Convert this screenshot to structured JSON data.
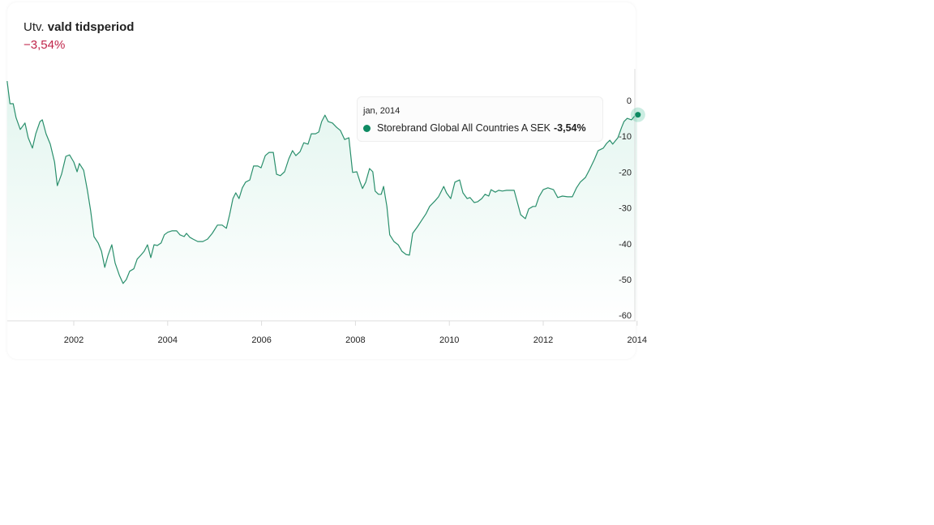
{
  "header": {
    "title_prefix": "Utv.",
    "title_bold": "vald tidsperiod",
    "change": "−3,54%",
    "change_color": "#c0254a"
  },
  "tooltip": {
    "date": "jan, 2014",
    "series": "Storebrand Global All Countries A SEK",
    "value": "-3,54%"
  },
  "colors": {
    "line": "#2a8f6c",
    "dot": "#0d8a62",
    "fill": "#2fb88a"
  },
  "chart_data": {
    "type": "area",
    "title": "Utv. vald tidsperiod",
    "xlabel": "",
    "ylabel": "",
    "xlim": [
      2000.58,
      2014.0
    ],
    "ylim": [
      -60,
      5
    ],
    "x_ticks": [
      2002,
      2004,
      2006,
      2008,
      2010,
      2012,
      2014
    ],
    "x_tick_labels": [
      "2002",
      "2004",
      "2006",
      "2008",
      "2010",
      "2012",
      "2014"
    ],
    "y_ticks": [
      0,
      -10,
      -20,
      -30,
      -40,
      -50,
      -60
    ],
    "y_tick_labels": [
      "0",
      "-10",
      "-20",
      "-30",
      "-40",
      "-50",
      "-60"
    ],
    "grid": false,
    "series": [
      {
        "name": "Storebrand Global All Countries A SEK",
        "points": [
          [
            2000.58,
            5.4
          ],
          [
            2000.64,
            -0.9
          ],
          [
            2000.71,
            -0.9
          ],
          [
            2000.77,
            -4.8
          ],
          [
            2000.86,
            -8.1
          ],
          [
            2000.96,
            -6.3
          ],
          [
            2001.03,
            -10.4
          ],
          [
            2001.12,
            -13.3
          ],
          [
            2001.19,
            -9.3
          ],
          [
            2001.28,
            -5.9
          ],
          [
            2001.33,
            -5.4
          ],
          [
            2001.41,
            -9.3
          ],
          [
            2001.5,
            -12.2
          ],
          [
            2001.59,
            -17.2
          ],
          [
            2001.65,
            -23.8
          ],
          [
            2001.74,
            -20.6
          ],
          [
            2001.83,
            -15.6
          ],
          [
            2001.91,
            -15.2
          ],
          [
            2002.0,
            -17.2
          ],
          [
            2002.07,
            -19.9
          ],
          [
            2002.12,
            -17.6
          ],
          [
            2002.21,
            -19.5
          ],
          [
            2002.29,
            -25.1
          ],
          [
            2002.36,
            -30.8
          ],
          [
            2002.43,
            -38.0
          ],
          [
            2002.52,
            -39.8
          ],
          [
            2002.59,
            -42.1
          ],
          [
            2002.66,
            -46.6
          ],
          [
            2002.73,
            -43.2
          ],
          [
            2002.81,
            -40.3
          ],
          [
            2002.88,
            -45.4
          ],
          [
            2002.97,
            -48.8
          ],
          [
            2003.05,
            -51.1
          ],
          [
            2003.12,
            -50.0
          ],
          [
            2003.19,
            -47.7
          ],
          [
            2003.28,
            -47.0
          ],
          [
            2003.35,
            -44.3
          ],
          [
            2003.43,
            -43.2
          ],
          [
            2003.5,
            -42.1
          ],
          [
            2003.57,
            -40.3
          ],
          [
            2003.64,
            -43.9
          ],
          [
            2003.71,
            -40.3
          ],
          [
            2003.78,
            -40.5
          ],
          [
            2003.86,
            -39.8
          ],
          [
            2003.93,
            -37.5
          ],
          [
            2004.0,
            -36.8
          ],
          [
            2004.09,
            -36.4
          ],
          [
            2004.19,
            -36.4
          ],
          [
            2004.26,
            -37.5
          ],
          [
            2004.35,
            -38.0
          ],
          [
            2004.4,
            -37.1
          ],
          [
            2004.47,
            -38.2
          ],
          [
            2004.54,
            -38.7
          ],
          [
            2004.64,
            -39.4
          ],
          [
            2004.75,
            -39.4
          ],
          [
            2004.85,
            -38.7
          ],
          [
            2004.95,
            -37.1
          ],
          [
            2005.06,
            -34.8
          ],
          [
            2005.16,
            -34.8
          ],
          [
            2005.25,
            -35.7
          ],
          [
            2005.32,
            -31.9
          ],
          [
            2005.39,
            -27.4
          ],
          [
            2005.45,
            -25.8
          ],
          [
            2005.52,
            -27.4
          ],
          [
            2005.59,
            -24.4
          ],
          [
            2005.66,
            -22.8
          ],
          [
            2005.75,
            -22.2
          ],
          [
            2005.83,
            -18.3
          ],
          [
            2005.92,
            -18.3
          ],
          [
            2005.99,
            -18.8
          ],
          [
            2006.08,
            -15.4
          ],
          [
            2006.16,
            -14.5
          ],
          [
            2006.25,
            -14.5
          ],
          [
            2006.32,
            -20.6
          ],
          [
            2006.4,
            -21.0
          ],
          [
            2006.49,
            -19.9
          ],
          [
            2006.58,
            -16.3
          ],
          [
            2006.66,
            -14.0
          ],
          [
            2006.73,
            -15.4
          ],
          [
            2006.82,
            -14.3
          ],
          [
            2006.9,
            -11.8
          ],
          [
            2006.99,
            -12.2
          ],
          [
            2007.06,
            -9.3
          ],
          [
            2007.15,
            -9.3
          ],
          [
            2007.22,
            -8.8
          ],
          [
            2007.28,
            -5.9
          ],
          [
            2007.35,
            -4.1
          ],
          [
            2007.42,
            -5.9
          ],
          [
            2007.51,
            -6.3
          ],
          [
            2007.6,
            -7.5
          ],
          [
            2007.68,
            -8.4
          ],
          [
            2007.77,
            -10.9
          ],
          [
            2007.86,
            -10.4
          ],
          [
            2007.94,
            -20.1
          ],
          [
            2008.03,
            -19.9
          ],
          [
            2008.1,
            -22.8
          ],
          [
            2008.15,
            -24.6
          ],
          [
            2008.22,
            -22.8
          ],
          [
            2008.3,
            -19.0
          ],
          [
            2008.37,
            -19.9
          ],
          [
            2008.42,
            -25.3
          ],
          [
            2008.49,
            -26.2
          ],
          [
            2008.55,
            -26.2
          ],
          [
            2008.6,
            -24.0
          ],
          [
            2008.67,
            -29.6
          ],
          [
            2008.73,
            -37.5
          ],
          [
            2008.82,
            -39.4
          ],
          [
            2008.91,
            -40.3
          ],
          [
            2008.99,
            -42.1
          ],
          [
            2009.08,
            -43.0
          ],
          [
            2009.15,
            -43.2
          ],
          [
            2009.22,
            -37.1
          ],
          [
            2009.32,
            -35.3
          ],
          [
            2009.41,
            -33.5
          ],
          [
            2009.5,
            -31.7
          ],
          [
            2009.58,
            -29.6
          ],
          [
            2009.69,
            -28.1
          ],
          [
            2009.77,
            -26.9
          ],
          [
            2009.88,
            -24.0
          ],
          [
            2009.94,
            -25.8
          ],
          [
            2010.03,
            -27.4
          ],
          [
            2010.12,
            -22.8
          ],
          [
            2010.22,
            -22.2
          ],
          [
            2010.29,
            -25.8
          ],
          [
            2010.38,
            -27.4
          ],
          [
            2010.44,
            -27.1
          ],
          [
            2010.53,
            -28.5
          ],
          [
            2010.6,
            -28.3
          ],
          [
            2010.69,
            -27.4
          ],
          [
            2010.76,
            -26.2
          ],
          [
            2010.84,
            -26.7
          ],
          [
            2010.89,
            -24.9
          ],
          [
            2010.98,
            -25.6
          ],
          [
            2011.05,
            -25.1
          ],
          [
            2011.13,
            -25.3
          ],
          [
            2011.22,
            -25.1
          ],
          [
            2011.31,
            -25.1
          ],
          [
            2011.38,
            -25.1
          ],
          [
            2011.45,
            -28.5
          ],
          [
            2011.52,
            -31.9
          ],
          [
            2011.62,
            -33.0
          ],
          [
            2011.69,
            -30.3
          ],
          [
            2011.78,
            -29.6
          ],
          [
            2011.84,
            -29.6
          ],
          [
            2011.91,
            -26.9
          ],
          [
            2012.0,
            -24.9
          ],
          [
            2012.1,
            -24.4
          ],
          [
            2012.22,
            -24.9
          ],
          [
            2012.31,
            -27.1
          ],
          [
            2012.41,
            -26.7
          ],
          [
            2012.52,
            -26.9
          ],
          [
            2012.62,
            -26.9
          ],
          [
            2012.71,
            -24.4
          ],
          [
            2012.79,
            -22.8
          ],
          [
            2012.9,
            -21.5
          ],
          [
            2012.98,
            -19.5
          ],
          [
            2013.09,
            -16.5
          ],
          [
            2013.17,
            -14.0
          ],
          [
            2013.28,
            -13.3
          ],
          [
            2013.35,
            -12.0
          ],
          [
            2013.42,
            -11.1
          ],
          [
            2013.48,
            -12.2
          ],
          [
            2013.59,
            -10.4
          ],
          [
            2013.67,
            -7.5
          ],
          [
            2013.72,
            -5.9
          ],
          [
            2013.79,
            -5.0
          ],
          [
            2013.88,
            -5.4
          ],
          [
            2014.0,
            -3.54
          ]
        ]
      }
    ]
  }
}
